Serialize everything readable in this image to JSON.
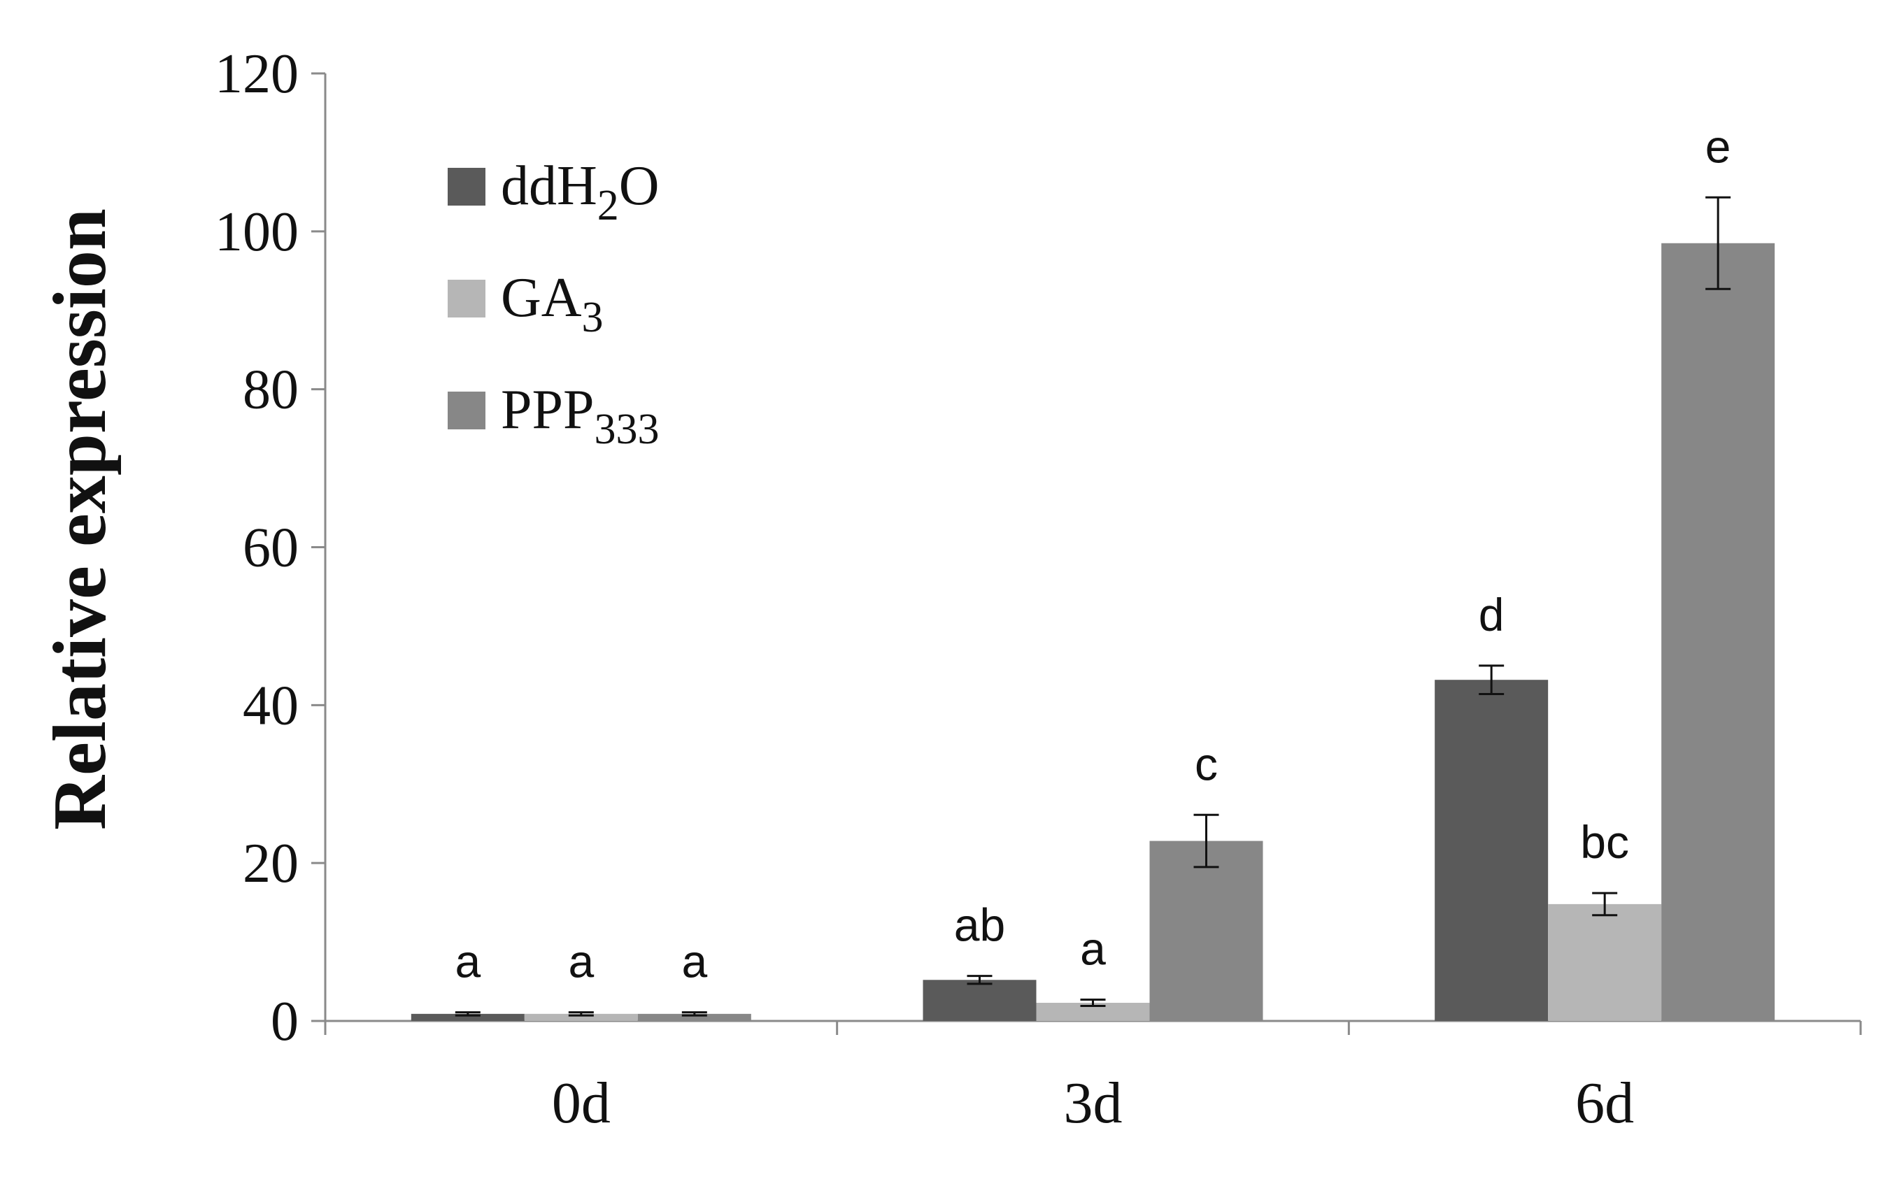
{
  "chart_data": {
    "type": "bar",
    "ylabel": "Relative expression",
    "xlabel": "",
    "ylim": [
      0,
      120
    ],
    "yticks": [
      "0",
      "20",
      "40",
      "60",
      "80",
      "100",
      "120"
    ],
    "categories": [
      "0d",
      "3d",
      "6d"
    ],
    "grid": false,
    "legend_position": "top-left",
    "series": [
      {
        "name": "ddH2O",
        "legend_base": "ddH",
        "legend_sub": "2",
        "legend_suffix": "O",
        "color": "#5a5a5a",
        "values": [
          0.9,
          5.2,
          43.2
        ],
        "errors": [
          0.2,
          0.5,
          1.8
        ],
        "letters": [
          "a",
          "ab",
          "d"
        ]
      },
      {
        "name": "GA3",
        "legend_base": "GA",
        "legend_sub": "3",
        "legend_suffix": "",
        "color": "#b6b6b6",
        "values": [
          0.9,
          2.3,
          14.8
        ],
        "errors": [
          0.2,
          0.4,
          1.4
        ],
        "letters": [
          "a",
          "a",
          "bc"
        ]
      },
      {
        "name": "PPP333",
        "legend_base": "PPP",
        "legend_sub": "333",
        "legend_suffix": "",
        "color": "#878787",
        "values": [
          0.9,
          22.8,
          98.5
        ],
        "errors": [
          0.2,
          3.3,
          5.8
        ],
        "letters": [
          "a",
          "c",
          "e"
        ]
      }
    ]
  }
}
